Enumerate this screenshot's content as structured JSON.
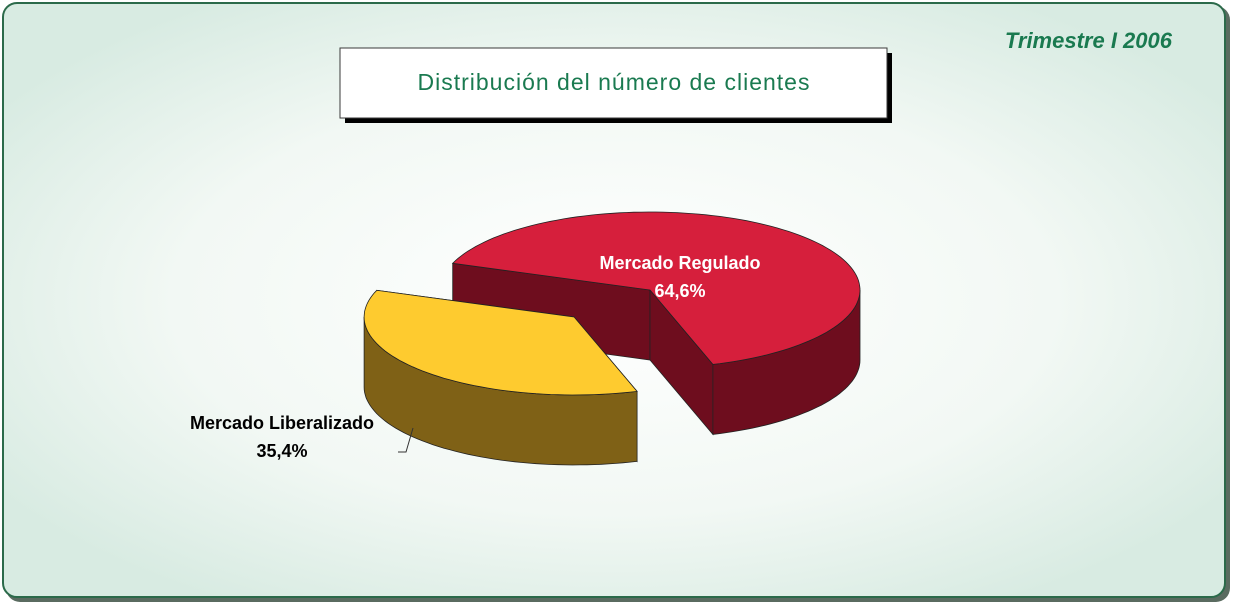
{
  "chart_data": {
    "type": "pie",
    "title": "Distribución del número de clientes",
    "subtitle": "Trimestre I 2006",
    "categories": [
      "Mercado Regulado",
      "Mercado Liberalizado"
    ],
    "values": [
      64.6,
      35.4
    ],
    "value_labels": [
      "64,6%",
      "35,4%"
    ],
    "colors": [
      "#d61f3c",
      "#fecb2f"
    ],
    "side_colors": [
      "#6e0d1e",
      "#7f6116"
    ],
    "exploded": [
      false,
      true
    ]
  }
}
